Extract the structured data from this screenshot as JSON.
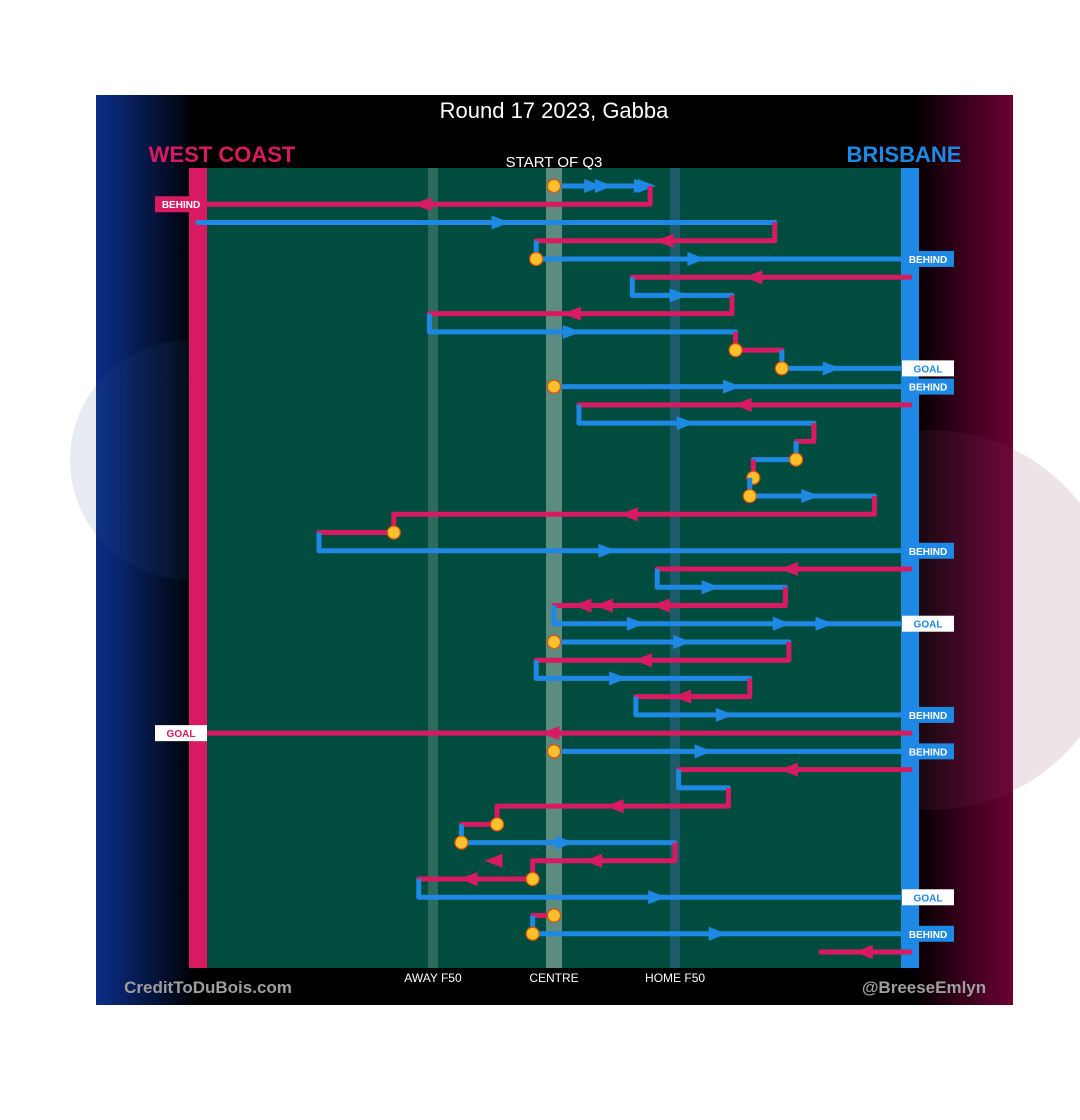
{
  "chart_data": {
    "type": "line",
    "title": "Round 17 2023, Gabba",
    "subtitle": "START OF Q3",
    "teams": {
      "away": {
        "name": "WEST COAST",
        "color": "#d81b60"
      },
      "home": {
        "name": "BRISBANE",
        "color": "#1e88e5"
      }
    },
    "colors": {
      "field": "#004d40",
      "ball": "#fbc02d",
      "goal_box": "#ffffff"
    },
    "x_axis": {
      "description": "Field position, 0 = West Coast goal line, 100 = Brisbane goal line",
      "ticks": [
        {
          "value": 33,
          "label": "AWAY F50"
        },
        {
          "value": 50,
          "label": "CENTRE"
        },
        {
          "value": 67,
          "label": "HOME F50"
        }
      ]
    },
    "footer": {
      "left": "CreditToDuBois.com",
      "right": "@BreeseEmlyn"
    },
    "chains": [
      {
        "team": "home",
        "start_type": "ball-up",
        "path": [
          50,
          55.5,
          57,
          62.5,
          63,
          63.5
        ],
        "end": null
      },
      {
        "team": "away",
        "start_type": "kick-in",
        "path": [
          63.5,
          31.5,
          0
        ],
        "end": "BEHIND"
      },
      {
        "team": "home",
        "start_type": "kick-in",
        "path": [
          0,
          42.5,
          81
        ],
        "end": null
      },
      {
        "team": "away",
        "start_type": "change",
        "path": [
          81,
          65.5,
          47.5
        ],
        "end": null
      },
      {
        "team": "home",
        "start_type": "ball-up",
        "path": [
          47.5,
          70,
          100
        ],
        "end": "BEHIND"
      },
      {
        "team": "away",
        "start_type": "kick-in",
        "path": [
          100,
          78,
          61
        ],
        "end": null
      },
      {
        "team": "home",
        "start_type": "change",
        "path": [
          61,
          67.5,
          75
        ],
        "end": null
      },
      {
        "team": "away",
        "start_type": "change",
        "path": [
          75,
          52.5,
          32.5
        ],
        "end": null
      },
      {
        "team": "home",
        "start_type": "change",
        "path": [
          32.5,
          52.5,
          75.5
        ],
        "end": null
      },
      {
        "team": "away",
        "start_type": "ball-up",
        "path": [
          75.5,
          82
        ],
        "end": null
      },
      {
        "team": "home",
        "start_type": "ball-up",
        "path": [
          82,
          89,
          100
        ],
        "end": "GOAL"
      },
      {
        "team": "home",
        "start_type": "centre-bounce",
        "path": [
          50,
          75,
          100
        ],
        "end": "BEHIND"
      },
      {
        "team": "away",
        "start_type": "kick-in",
        "path": [
          100,
          76.5,
          53.5
        ],
        "end": null
      },
      {
        "team": "home",
        "start_type": "change",
        "path": [
          53.5,
          68.5,
          86.5
        ],
        "end": null
      },
      {
        "team": "away",
        "start_type": "change",
        "path": [
          86.5,
          84
        ],
        "end": null
      },
      {
        "team": "home",
        "start_type": "ball-up",
        "path": [
          84,
          78
        ],
        "end": null
      },
      {
        "team": "away",
        "start_type": "ball-up",
        "path": [
          78,
          77.5
        ],
        "end": null
      },
      {
        "team": "home",
        "start_type": "ball-up",
        "path": [
          77.5,
          86,
          95
        ],
        "end": null
      },
      {
        "team": "away",
        "start_type": "change",
        "path": [
          95,
          60.5,
          27.5
        ],
        "end": null
      },
      {
        "team": "away",
        "start_type": "ball-up",
        "path": [
          27.5,
          17
        ],
        "end": null
      },
      {
        "team": "home",
        "start_type": "change",
        "path": [
          17,
          57.5,
          100
        ],
        "end": "BEHIND"
      },
      {
        "team": "away",
        "start_type": "kick-in",
        "path": [
          100,
          83,
          64.5
        ],
        "end": null
      },
      {
        "team": "home",
        "start_type": "change",
        "path": [
          64.5,
          72,
          82.5
        ],
        "end": null
      },
      {
        "team": "away",
        "start_type": "change",
        "path": [
          82.5,
          65,
          57,
          54,
          50
        ],
        "end": null
      },
      {
        "team": "home",
        "start_type": "change",
        "path": [
          50,
          61.5,
          82,
          88,
          100
        ],
        "end": "GOAL"
      },
      {
        "team": "home",
        "start_type": "centre-bounce",
        "path": [
          50,
          68,
          83
        ],
        "end": null
      },
      {
        "team": "away",
        "start_type": "change",
        "path": [
          83,
          62.5,
          47.5
        ],
        "end": null
      },
      {
        "team": "home",
        "start_type": "change",
        "path": [
          47.5,
          59,
          77.5
        ],
        "end": null
      },
      {
        "team": "away",
        "start_type": "change",
        "path": [
          77.5,
          68,
          61.5
        ],
        "end": null
      },
      {
        "team": "home",
        "start_type": "change",
        "path": [
          61.5,
          74,
          100
        ],
        "end": "BEHIND"
      },
      {
        "team": "away",
        "start_type": "kick-in",
        "path": [
          100,
          49.5,
          0
        ],
        "end": "GOAL"
      },
      {
        "team": "home",
        "start_type": "centre-bounce",
        "path": [
          50,
          71,
          100
        ],
        "end": "BEHIND"
      },
      {
        "team": "away",
        "start_type": "kick-in",
        "path": [
          100,
          83,
          67.5
        ],
        "end": null
      },
      {
        "team": "home",
        "start_type": "change",
        "path": [
          67.5,
          74.5
        ],
        "end": null
      },
      {
        "team": "away",
        "start_type": "change",
        "path": [
          74.5,
          58.5,
          42
        ],
        "end": null
      },
      {
        "team": "away",
        "start_type": "ball-up",
        "path": [
          42,
          37
        ],
        "end": null
      },
      {
        "team": "home",
        "start_type": "ball-up",
        "path": [
          37,
          51.5,
          67
        ],
        "end": null
      },
      {
        "team": "away",
        "start_type": "change",
        "path": [
          67,
          55.5,
          41.5,
          47
        ],
        "end": null
      },
      {
        "team": "away",
        "start_type": "ball-up",
        "path": [
          47,
          38,
          31
        ],
        "end": null
      },
      {
        "team": "home",
        "start_type": "change",
        "path": [
          31,
          64.5,
          100
        ],
        "end": "GOAL"
      },
      {
        "team": "away",
        "start_type": "centre-bounce",
        "path": [
          50,
          47
        ],
        "end": null
      },
      {
        "team": "home",
        "start_type": "ball-up",
        "path": [
          47,
          73,
          100
        ],
        "end": "BEHIND"
      },
      {
        "team": "away",
        "start_type": "kick-in",
        "path": [
          100,
          93.5,
          87.5
        ],
        "end": null
      }
    ]
  }
}
